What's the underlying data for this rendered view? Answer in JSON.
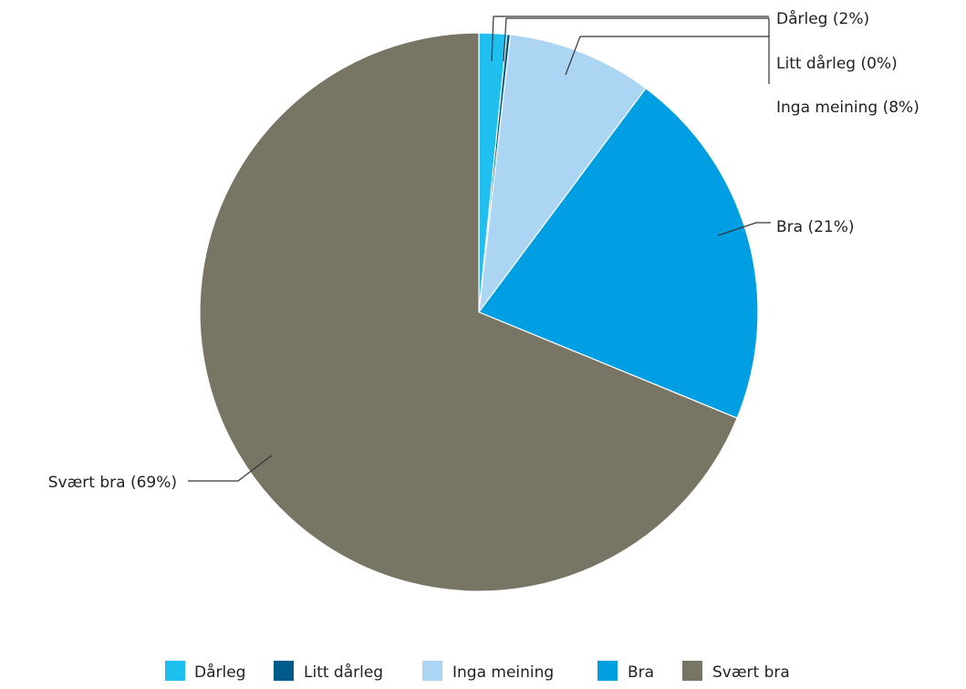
{
  "chart_data": {
    "type": "pie",
    "categories": [
      "Dårleg",
      "Litt dårleg",
      "Inga meining",
      "Bra",
      "Svært bra"
    ],
    "values": [
      1.6,
      0.2,
      8.4,
      21.0,
      68.8
    ],
    "slice_labels": [
      "Dårleg (2%)",
      "Litt dårleg (0%)",
      "Inga meining (8%)",
      "Bra (21%)",
      "Svært bra (69%)"
    ],
    "colors": [
      "#1fbff0",
      "#005a8c",
      "#acd4f3",
      "#009fe3",
      "#787564"
    ],
    "legend": {
      "placement": "bottom",
      "entries": [
        "Dårleg",
        "Litt dårleg",
        "Inga meining",
        "Bra",
        "Svært bra"
      ]
    }
  }
}
